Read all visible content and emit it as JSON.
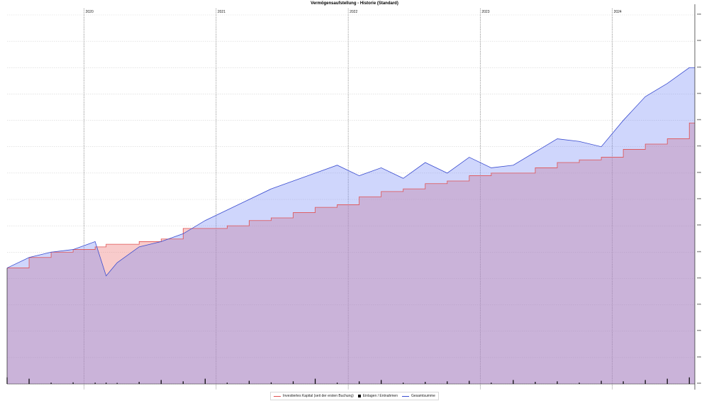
{
  "chart_data": {
    "type": "area",
    "title": "Vermögensaufstellung - Historie (Standard)",
    "x_ticks": [
      "2020",
      "2021",
      "2022",
      "2023",
      "2024"
    ],
    "x": [
      "2019-06",
      "2019-08",
      "2019-10",
      "2019-12",
      "2020-02",
      "2020-03",
      "2020-04",
      "2020-06",
      "2020-08",
      "2020-10",
      "2020-12",
      "2021-02",
      "2021-04",
      "2021-06",
      "2021-08",
      "2021-10",
      "2021-12",
      "2022-02",
      "2022-04",
      "2022-06",
      "2022-08",
      "2022-10",
      "2022-12",
      "2023-02",
      "2023-04",
      "2023-06",
      "2023-08",
      "2023-10",
      "2023-12",
      "2024-02",
      "2024-04",
      "2024-06",
      "2024-08"
    ],
    "y_tick_label": "***",
    "y_tick_count": 15,
    "ylim": [
      0,
      14
    ],
    "grid": true,
    "legend_position": "bottom",
    "series": [
      {
        "name": "Investiertes Kapital (seit der ersten Buchung)",
        "color": "#e05050",
        "values": [
          4.4,
          4.8,
          5.0,
          5.1,
          5.2,
          5.3,
          5.3,
          5.4,
          5.5,
          5.9,
          5.9,
          6.0,
          6.2,
          6.3,
          6.5,
          6.7,
          6.8,
          7.1,
          7.3,
          7.4,
          7.6,
          7.7,
          7.9,
          8.0,
          8.0,
          8.2,
          8.4,
          8.5,
          8.6,
          8.9,
          9.1,
          9.3,
          9.9
        ]
      },
      {
        "name": "Gesamtsumme",
        "color": "#3a4ccf",
        "values": [
          4.4,
          4.8,
          5.0,
          5.1,
          5.4,
          4.1,
          4.6,
          5.2,
          5.4,
          5.7,
          6.2,
          6.6,
          7.0,
          7.4,
          7.7,
          8.0,
          8.3,
          7.9,
          8.2,
          7.8,
          8.4,
          8.0,
          8.6,
          8.2,
          8.3,
          8.8,
          9.3,
          9.2,
          9.0,
          10.0,
          10.9,
          11.4,
          12.0
        ]
      }
    ],
    "bars": {
      "name": "Einlagen / Entnahmen",
      "color": "#000000",
      "values": [
        0.25,
        0.2,
        0.05,
        0.06,
        0.05,
        0.05,
        0.04,
        0.08,
        0.15,
        0.1,
        0.2,
        0.05,
        0.12,
        0.06,
        0.1,
        0.2,
        0.05,
        0.1,
        0.15,
        0.05,
        0.08,
        0.1,
        0.12,
        0.05,
        0.15,
        0.08,
        0.1,
        0.05,
        0.12,
        0.1,
        0.15,
        0.2,
        0.25
      ]
    }
  }
}
